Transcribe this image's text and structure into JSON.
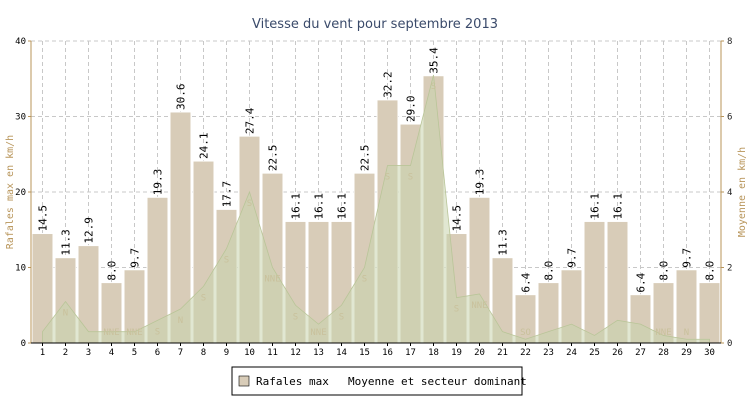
{
  "chart_data": {
    "type": "bar",
    "title": "Vitesse du vent pour septembre 2013",
    "ylabel_left": "Rafales max en km/h",
    "ylabel_right": "Moyenne en km/h",
    "ylim_left": [
      0,
      40
    ],
    "ylim_right": [
      0,
      8
    ],
    "yticks_left": [
      "0",
      "10",
      "20",
      "30",
      "40"
    ],
    "yticks_right": [
      "0",
      "2",
      "4",
      "6",
      "8"
    ],
    "categories": [
      "1",
      "2",
      "3",
      "4",
      "5",
      "6",
      "7",
      "8",
      "9",
      "10",
      "11",
      "12",
      "13",
      "14",
      "15",
      "16",
      "17",
      "18",
      "19",
      "20",
      "21",
      "22",
      "23",
      "24",
      "25",
      "26",
      "27",
      "28",
      "29",
      "30"
    ],
    "series": [
      {
        "name": "Rafales max",
        "axis": "left",
        "color": "#d8ccb8",
        "labels": [
          "14.5",
          "11.3",
          "12.9",
          "8.0",
          "9.7",
          "19.3",
          "30.6",
          "24.1",
          "17.7",
          "27.4",
          "22.5",
          "16.1",
          "16.1",
          "16.1",
          "22.5",
          "32.2",
          "29.0",
          "35.4",
          "14.5",
          "19.3",
          "11.3",
          "6.4",
          "8.0",
          "9.7",
          "16.1",
          "16.1",
          "6.4",
          "8.0",
          "9.7",
          "8.0"
        ],
        "values": [
          14.5,
          11.3,
          12.9,
          8.0,
          9.7,
          19.3,
          30.6,
          24.1,
          17.7,
          27.4,
          22.5,
          16.1,
          16.1,
          16.1,
          22.5,
          32.2,
          29.0,
          35.4,
          14.5,
          19.3,
          11.3,
          6.4,
          8.0,
          9.7,
          16.1,
          16.1,
          6.4,
          8.0,
          9.7,
          8.0
        ]
      },
      {
        "name": "Moyenne et secteur dominant",
        "axis": "right",
        "type": "area",
        "color": "#c9d3ad",
        "values": [
          0.3,
          1.1,
          0.3,
          0.3,
          0.3,
          0.6,
          0.9,
          1.5,
          2.5,
          4.0,
          2.0,
          1.0,
          0.5,
          1.0,
          2.0,
          4.7,
          4.7,
          7.1,
          1.2,
          1.3,
          0.3,
          0.1,
          0.3,
          0.5,
          0.2,
          0.6,
          0.5,
          0.2,
          0.1,
          0.1
        ]
      }
    ],
    "directions": [
      "",
      "N",
      "",
      "NNE",
      "NNE",
      "S",
      "N",
      "S",
      "S",
      "S",
      "NNE",
      "S",
      "NNE",
      "S",
      "S",
      "S",
      "S",
      "S",
      "S",
      "NNE",
      "",
      "SO",
      "",
      "",
      "",
      "",
      "",
      "NNE",
      "N",
      ""
    ],
    "legend": [
      "Rafales max",
      "Moyenne et secteur dominant"
    ],
    "legend_position": "bottom",
    "grid": true,
    "colors": {
      "bar_fill": "#d8ccb8",
      "bar_stroke": "#ffffff",
      "area_fill": "#c9d3ad",
      "grid": "#c8c8c8",
      "axis_left": "#b8955a",
      "axis_right": "#b8955a",
      "title": "#3a4a6a",
      "direction_text": "#c9c19c"
    }
  }
}
